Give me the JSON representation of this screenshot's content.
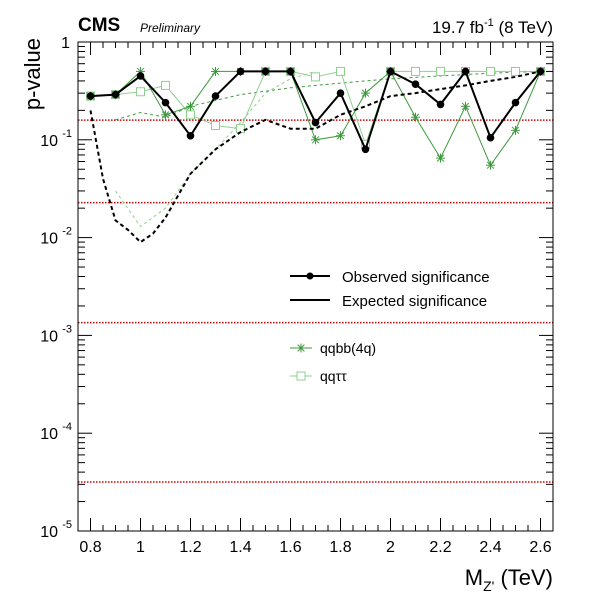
{
  "chart_data": {
    "type": "line",
    "header": {
      "experiment": "CMS",
      "status": "Preliminary",
      "lumi": "19.7",
      "lumi_unit_base": "fb",
      "lumi_unit_exp": "-1",
      "energy": "(8 TeV)"
    },
    "xlabel_base": "M",
    "xlabel_sub": "Z'",
    "xlabel_unit": "(TeV)",
    "ylabel": "p-value",
    "xlim": [
      0.75,
      2.65
    ],
    "ylim": [
      1e-05,
      1
    ],
    "yscale": "log",
    "xticks": [
      {
        "v": 0.8,
        "label": "0.8"
      },
      {
        "v": 1.0,
        "label": "1"
      },
      {
        "v": 1.2,
        "label": "1.2"
      },
      {
        "v": 1.4,
        "label": "1.4"
      },
      {
        "v": 1.6,
        "label": "1.6"
      },
      {
        "v": 1.8,
        "label": "1.8"
      },
      {
        "v": 2.0,
        "label": "2"
      },
      {
        "v": 2.2,
        "label": "2.2"
      },
      {
        "v": 2.4,
        "label": "2.4"
      },
      {
        "v": 2.6,
        "label": "2.6"
      }
    ],
    "yticks": [
      {
        "v": 1,
        "base": "1",
        "exp": ""
      },
      {
        "v": 0.1,
        "base": "10",
        "exp": "-1"
      },
      {
        "v": 0.01,
        "base": "10",
        "exp": "-2"
      },
      {
        "v": 0.001,
        "base": "10",
        "exp": "-3"
      },
      {
        "v": 0.0001,
        "base": "10",
        "exp": "-4"
      },
      {
        "v": 1e-05,
        "base": "10",
        "exp": "-5"
      }
    ],
    "sigma_lines": [
      0.1587,
      0.02275,
      0.00135,
      3.17e-05
    ],
    "legend": {
      "position": "center-right",
      "entries": [
        {
          "key": "observed",
          "label": "Observed significance"
        },
        {
          "key": "expected",
          "label": "Expected significance"
        },
        {
          "key": "qqbb",
          "label": "qqbb(4q)"
        },
        {
          "key": "qqtautau",
          "label": "qqττ"
        }
      ]
    },
    "x": [
      0.8,
      0.9,
      1.0,
      1.1,
      1.2,
      1.3,
      1.4,
      1.5,
      1.6,
      1.7,
      1.8,
      1.9,
      2.0,
      2.1,
      2.2,
      2.3,
      2.4,
      2.5,
      2.6
    ],
    "series": [
      {
        "key": "observed",
        "color": "#000000",
        "marker": "circle",
        "values": [
          0.28,
          0.29,
          0.45,
          0.24,
          0.11,
          0.28,
          0.5,
          0.5,
          0.5,
          0.15,
          0.3,
          0.08,
          0.5,
          0.37,
          0.23,
          0.5,
          0.105,
          0.24,
          0.5
        ]
      },
      {
        "key": "qqbb",
        "color": "#3d9a3d",
        "marker": "star",
        "values": [
          0.28,
          0.29,
          0.5,
          0.18,
          0.22,
          0.5,
          0.5,
          0.5,
          0.5,
          0.1,
          0.11,
          0.3,
          0.5,
          0.17,
          0.065,
          0.22,
          0.055,
          0.125,
          0.5
        ]
      },
      {
        "key": "qqtautau",
        "color": "#8fcf8f",
        "marker": "square",
        "values": [
          0.28,
          0.29,
          0.31,
          0.36,
          0.18,
          0.14,
          0.13,
          0.5,
          0.5,
          0.44,
          0.5,
          0.09,
          0.5,
          0.5,
          0.5,
          0.5,
          0.5,
          0.5,
          0.5
        ]
      },
      {
        "key": "expected",
        "color": "#000000",
        "style": "dashed",
        "x": [
          0.8,
          0.85,
          0.9,
          0.95,
          1.0,
          1.05,
          1.1,
          1.2,
          1.3,
          1.4,
          1.5,
          1.6,
          1.7,
          1.8,
          1.9,
          2.0,
          2.1,
          2.2,
          2.3,
          2.4,
          2.5,
          2.6
        ],
        "values": [
          0.2,
          0.04,
          0.015,
          0.012,
          0.009,
          0.011,
          0.016,
          0.045,
          0.08,
          0.12,
          0.16,
          0.13,
          0.13,
          0.18,
          0.22,
          0.28,
          0.3,
          0.33,
          0.36,
          0.4,
          0.44,
          0.5
        ]
      },
      {
        "key": "expected_qqbb",
        "color": "#3d9a3d",
        "style": "dashed",
        "x": [
          0.9,
          1.0,
          1.1,
          1.2,
          1.4,
          1.6,
          1.8,
          2.0,
          2.2,
          2.4,
          2.6
        ],
        "values": [
          0.16,
          0.19,
          0.17,
          0.22,
          0.29,
          0.34,
          0.38,
          0.42,
          0.45,
          0.48,
          0.5
        ]
      },
      {
        "key": "expected_qqtautau",
        "color": "#8fcf8f",
        "style": "dashed",
        "x": [
          0.9,
          1.0,
          1.1,
          1.2,
          1.3,
          1.4,
          1.5,
          1.6,
          1.7
        ],
        "values": [
          0.03,
          0.013,
          0.02,
          0.045,
          0.08,
          0.15,
          0.3,
          0.42,
          0.5
        ]
      }
    ]
  }
}
